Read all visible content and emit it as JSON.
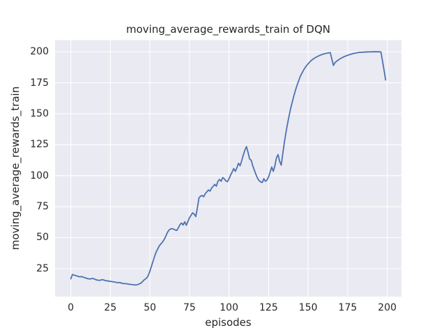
{
  "style": {
    "plot_background": "#EAEAF2",
    "grid_color": "#FFFFFF",
    "line_color": "#4C72B0",
    "text_color": "#262626"
  },
  "chart_data": {
    "type": "line",
    "title": "moving_average_rewards_train of DQN",
    "xlabel": "episodes",
    "ylabel": "moving_average_rewards_train",
    "x_ticks": [
      0,
      25,
      50,
      75,
      100,
      125,
      150,
      175,
      200
    ],
    "y_ticks": [
      25,
      50,
      75,
      100,
      125,
      150,
      175,
      200
    ],
    "xlim": [
      -9.95,
      208.95
    ],
    "ylim": [
      2.4,
      209.4
    ],
    "grid": true,
    "legend": false,
    "series": [
      {
        "name": "moving_average_rewards_train",
        "x_start": 0,
        "x_step": 1,
        "values": [
          16.8,
          20.2,
          19.8,
          19.4,
          19.0,
          18.6,
          18.3,
          18.6,
          18.0,
          17.6,
          17.2,
          16.8,
          16.6,
          16.9,
          17.1,
          16.5,
          16.0,
          15.7,
          15.5,
          15.8,
          16.1,
          15.7,
          15.3,
          15.1,
          14.9,
          14.7,
          14.5,
          14.3,
          14.1,
          13.8,
          13.6,
          13.8,
          13.3,
          13.0,
          12.9,
          12.8,
          12.6,
          12.4,
          12.2,
          12.1,
          11.9,
          11.8,
          12.0,
          12.5,
          13.1,
          14.0,
          15.5,
          16.5,
          17.5,
          19.5,
          23.0,
          27.0,
          31.0,
          35.0,
          38.5,
          41.0,
          43.5,
          45.0,
          46.5,
          48.5,
          51.0,
          54.0,
          56.0,
          57.0,
          57.3,
          56.8,
          56.2,
          55.8,
          58.0,
          60.5,
          61.8,
          60.2,
          62.8,
          60.0,
          63.0,
          66.0,
          68.0,
          70.0,
          69.0,
          67.0,
          74.0,
          82.0,
          83.5,
          84.0,
          83.0,
          85.5,
          87.0,
          88.5,
          87.5,
          90.0,
          91.5,
          93.0,
          91.5,
          95.5,
          97.0,
          95.5,
          98.5,
          97.5,
          95.8,
          95.2,
          97.5,
          100.5,
          103.0,
          105.8,
          103.5,
          106.5,
          110.0,
          108.0,
          112.0,
          116.5,
          120.5,
          123.5,
          119.0,
          113.5,
          112.5,
          108.0,
          104.5,
          101.0,
          98.0,
          96.0,
          95.0,
          94.5,
          97.5,
          95.5,
          96.5,
          99.0,
          103.0,
          107.0,
          103.5,
          108.0,
          114.5,
          117.0,
          111.5,
          108.5,
          118.0,
          127.0,
          135.0,
          142.0,
          148.5,
          154.5,
          159.5,
          164.5,
          169.0,
          173.0,
          176.5,
          180.0,
          182.5,
          185.0,
          187.0,
          188.8,
          190.3,
          191.7,
          193.0,
          194.0,
          194.8,
          195.6,
          196.3,
          196.9,
          197.4,
          197.9,
          198.3,
          198.6,
          198.9,
          199.1,
          199.3,
          194.0,
          189.0,
          191.3,
          192.4,
          193.3,
          194.2,
          194.9,
          195.6,
          196.2,
          196.7,
          197.2,
          197.6,
          198.0,
          198.4,
          198.7,
          199.0,
          199.2,
          199.4,
          199.5,
          199.6,
          199.7,
          199.8,
          199.85,
          199.9,
          199.9,
          199.95,
          200.0,
          200.0,
          200.0,
          200.0,
          200.0,
          199.8,
          192.5,
          185.0,
          177.3
        ]
      }
    ]
  }
}
